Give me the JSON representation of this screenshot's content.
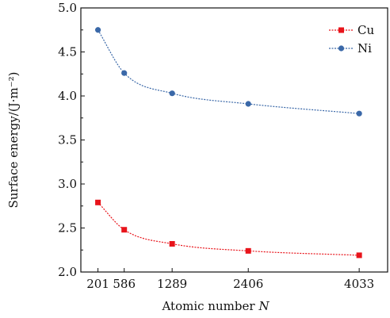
{
  "chart_data": {
    "type": "line",
    "xlabel_text": "Atomic number",
    "xlabel_var": "N",
    "ylabel": "Surface energy/(J·m⁻²)",
    "x": [
      201,
      586,
      1289,
      2406,
      4033
    ],
    "xtick_labels": [
      "201",
      "586",
      "1289",
      "2406",
      "4033"
    ],
    "xlim": [
      -50,
      4450
    ],
    "ylim": [
      2.0,
      5.0
    ],
    "yticks": [
      2.0,
      2.5,
      3.0,
      3.5,
      4.0,
      4.5,
      5.0
    ],
    "ytick_labels": [
      "2.0",
      "2.5",
      "3.0",
      "3.5",
      "4.0",
      "4.5",
      "5.0"
    ],
    "grid": false,
    "legend_position": "top-right",
    "series": [
      {
        "name": "Cu",
        "values": [
          2.79,
          2.48,
          2.32,
          2.24,
          2.19
        ],
        "color": "#e8141b",
        "marker": "square"
      },
      {
        "name": "Ni",
        "values": [
          4.75,
          4.26,
          4.03,
          3.91,
          3.8
        ],
        "color": "#3a68a8",
        "marker": "circle"
      }
    ]
  }
}
